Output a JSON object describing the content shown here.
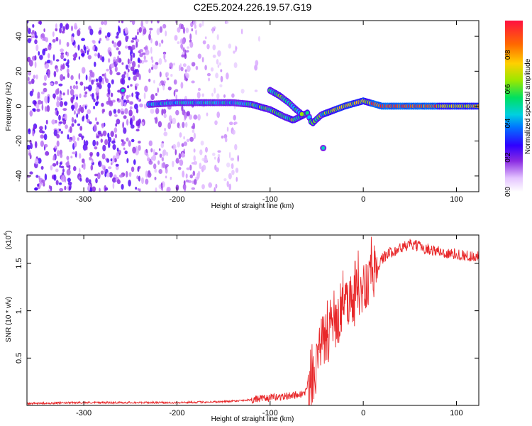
{
  "figure": {
    "title": "C2E5.2024.226.19.57.G19"
  },
  "chart_data": [
    {
      "type": "heatmap",
      "xlabel": "Height of straight line (km)",
      "ylabel": "Frequency (Hz)",
      "xlim": [
        -361,
        124
      ],
      "ylim": [
        -49,
        49
      ],
      "xticks": [
        -300,
        -200,
        -100,
        0,
        100
      ],
      "yticks": [
        -40,
        -20,
        0,
        20,
        40
      ],
      "colorbar": {
        "label": "Normalized spectral amplitude",
        "range": [
          0,
          1
        ],
        "ticks": [
          0.0,
          0.2,
          0.4,
          0.6,
          0.8
        ],
        "colors": [
          "#f5f0ff",
          "#d9a6ff",
          "#8a2be2",
          "#3f00ff",
          "#0050ff",
          "#00c8ff",
          "#00e070",
          "#a0e800",
          "#ffd000",
          "#ff7000",
          "#ff1030"
        ]
      },
      "ridge": [
        {
          "x": -230,
          "y": 1
        },
        {
          "x": -200,
          "y": 2
        },
        {
          "x": -170,
          "y": 2
        },
        {
          "x": -140,
          "y": 2
        },
        {
          "x": -120,
          "y": 1
        },
        {
          "x": -100,
          "y": -2
        },
        {
          "x": -85,
          "y": -6
        },
        {
          "x": -75,
          "y": -8
        },
        {
          "x": -60,
          "y": -4
        },
        {
          "x": -55,
          "y": -10
        },
        {
          "x": -45,
          "y": -5
        },
        {
          "x": -35,
          "y": -3
        },
        {
          "x": -20,
          "y": 0
        },
        {
          "x": 0,
          "y": 3
        },
        {
          "x": 20,
          "y": 0
        },
        {
          "x": 60,
          "y": 0
        },
        {
          "x": 124,
          "y": 0
        }
      ],
      "branch": [
        {
          "x": -100,
          "y": 9
        },
        {
          "x": -90,
          "y": 6
        },
        {
          "x": -80,
          "y": 2
        },
        {
          "x": -72,
          "y": -2
        },
        {
          "x": -65,
          "y": -5
        }
      ],
      "isolated": [
        {
          "x": -258,
          "y": 9
        },
        {
          "x": -43,
          "y": -24
        }
      ]
    },
    {
      "type": "line",
      "xlabel": "Height of straight line (km)",
      "ylabel": "SNR (10 * v/v)",
      "y_multiplier": "(x10",
      "y_multiplier_exp": "4",
      "y_multiplier_close": ")",
      "xlim": [
        -361,
        124
      ],
      "ylim": [
        0,
        1.8
      ],
      "xticks": [
        -300,
        -200,
        -100,
        0,
        100
      ],
      "yticks": [
        0.5,
        1.0,
        1.5
      ],
      "ytick_labels": [
        "0.5",
        "1.",
        "1.5"
      ],
      "series": [
        {
          "color": "#e8282a",
          "x": [
            -361,
            -300,
            -200,
            -150,
            -120,
            -100,
            -80,
            -65,
            -55,
            -50,
            -45,
            -40,
            -35,
            -30,
            -25,
            -20,
            -15,
            -10,
            -5,
            0,
            5,
            10,
            15,
            20,
            30,
            40,
            50,
            60,
            70,
            80,
            90,
            100,
            110,
            124
          ],
          "y": [
            0.02,
            0.03,
            0.03,
            0.04,
            0.06,
            0.08,
            0.1,
            0.12,
            0.2,
            0.45,
            0.65,
            0.7,
            0.75,
            0.85,
            0.95,
            1.0,
            1.05,
            1.1,
            1.15,
            1.2,
            1.3,
            1.4,
            1.45,
            1.55,
            1.62,
            1.66,
            1.7,
            1.68,
            1.65,
            1.63,
            1.6,
            1.6,
            1.58,
            1.57
          ]
        }
      ]
    }
  ]
}
